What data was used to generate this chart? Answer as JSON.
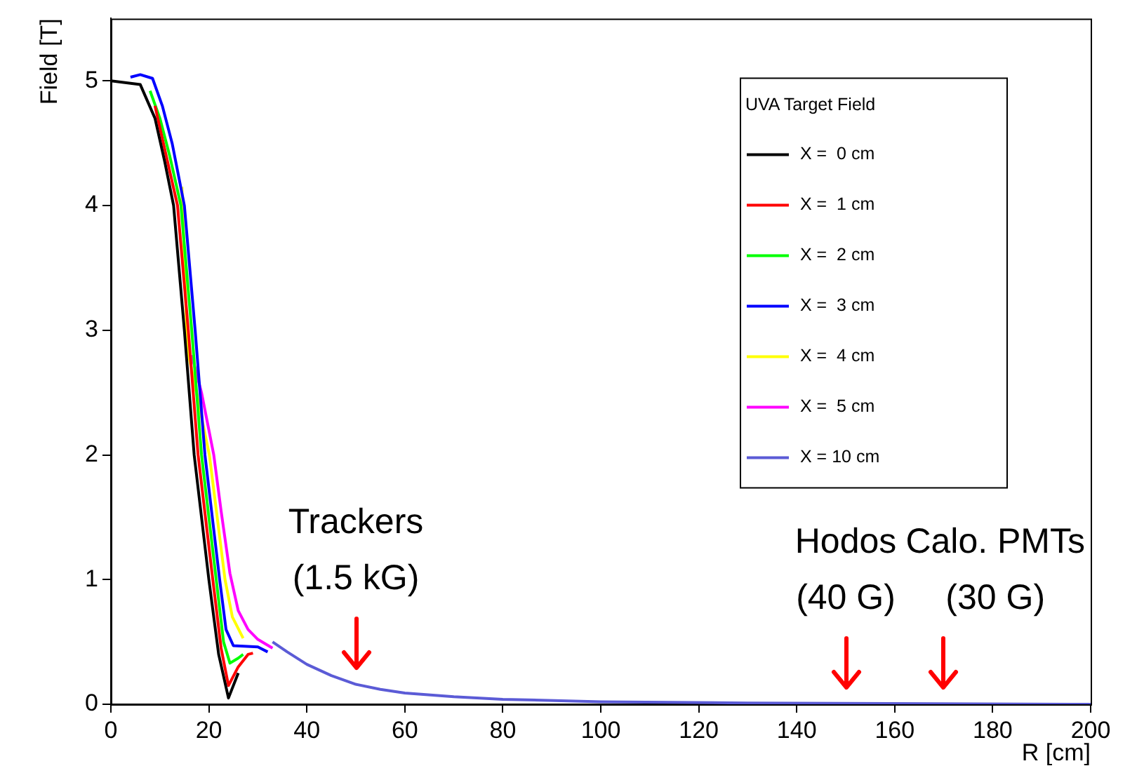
{
  "chart_data": {
    "type": "line",
    "xlabel": "R [cm]",
    "ylabel": "Field [T]",
    "legend_title": "UVA Target Field",
    "legend": "top right",
    "marker": "none",
    "xlim": [
      0,
      200
    ],
    "ylim": [
      0,
      5.5
    ],
    "xticks": [
      0,
      20,
      40,
      60,
      80,
      100,
      120,
      140,
      160,
      180,
      200
    ],
    "yticks": [
      0,
      1,
      2,
      3,
      4,
      5
    ],
    "series": [
      {
        "name": "X =  0 cm",
        "color": "#000000",
        "x": [
          0,
          6,
          9,
          11,
          12.8,
          15,
          17,
          20,
          22,
          24,
          26
        ],
        "values": [
          5,
          4.97,
          4.7,
          4.35,
          4,
          3,
          2,
          1,
          0.4,
          0.05,
          0.25
        ]
      },
      {
        "name": "X =  1 cm",
        "color": "#ff0000",
        "x": [
          9,
          11,
          13.6,
          15.8,
          17.8,
          20.8,
          22.5,
          24,
          26,
          28,
          29
        ],
        "values": [
          4.8,
          4.45,
          4,
          3,
          2,
          1,
          0.45,
          0.15,
          0.3,
          0.4,
          0.41
        ]
      },
      {
        "name": "X =  2 cm",
        "color": "#00ff00",
        "x": [
          8,
          10,
          12,
          14.3,
          16.5,
          18.5,
          21.5,
          23,
          24.3,
          26,
          27
        ],
        "values": [
          4.92,
          4.7,
          4.4,
          4,
          3,
          2,
          1,
          0.5,
          0.33,
          0.37,
          0.4
        ]
      },
      {
        "name": "X =  3 cm",
        "color": "#0000ff",
        "x": [
          4,
          6,
          8.5,
          10.5,
          12.5,
          15,
          17.2,
          19.2,
          22.2,
          23.5,
          25,
          30,
          32
        ],
        "values": [
          5.03,
          5.05,
          5.02,
          4.8,
          4.5,
          4,
          3,
          2,
          1,
          0.6,
          0.47,
          0.46,
          0.42
        ]
      },
      {
        "name": "X =  4 cm",
        "color": "#ffff00",
        "x": [
          14.5,
          15.6,
          20.1,
          23.3,
          24.8,
          27
        ],
        "values": [
          4.15,
          2.85,
          2,
          1,
          0.7,
          0.53
        ]
      },
      {
        "name": "X =  5 cm",
        "color": "#ff00ff",
        "x": [
          16.5,
          18.5,
          21,
          22.5,
          24.3,
          26,
          28,
          30,
          33
        ],
        "values": [
          2.8,
          2.5,
          2,
          1.55,
          1.05,
          0.75,
          0.6,
          0.52,
          0.45
        ]
      },
      {
        "name": "X = 10 cm",
        "color": "#5b5bd6",
        "x": [
          33,
          36,
          40,
          45,
          50,
          55,
          60,
          70,
          80,
          100,
          130,
          200
        ],
        "values": [
          0.5,
          0.42,
          0.32,
          0.23,
          0.16,
          0.12,
          0.09,
          0.06,
          0.04,
          0.02,
          0.01,
          0
        ]
      }
    ],
    "annotations": [
      {
        "text": "Trackers\n(1.5 kG)",
        "x": 50,
        "y": 0.16
      },
      {
        "text": "Hodos\n(40 G)",
        "x": 150,
        "y": 0
      },
      {
        "text": "Calo. PMTs\n(30 G)",
        "x": 170,
        "y": 0
      }
    ]
  }
}
